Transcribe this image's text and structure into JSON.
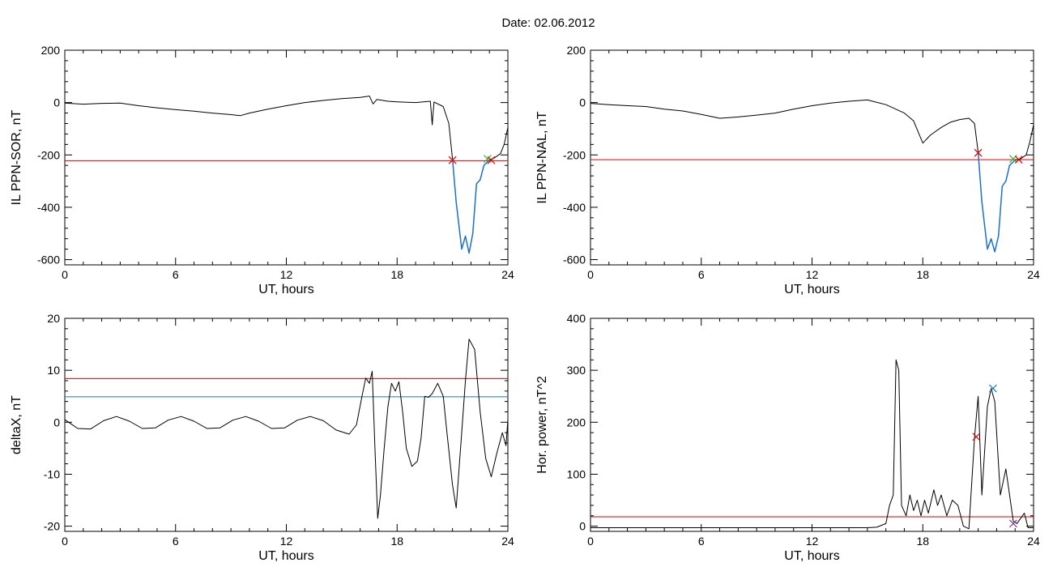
{
  "header": {
    "date_title": "Date:  02.06.2012"
  },
  "colors": {
    "data": "#000000",
    "red": "#e00000",
    "blue": "#1a6fd6",
    "green": "#22b022",
    "purple": "#7030a0"
  },
  "chart_data": [
    {
      "id": "p1",
      "type": "line",
      "xlabel": "UT, hours",
      "ylabel": "IL PPN-SOR, nT",
      "xlim": [
        0,
        24
      ],
      "ylim": [
        -620,
        200
      ],
      "xticks": [
        0,
        6,
        12,
        18,
        24
      ],
      "yticks": [
        200,
        0,
        -200,
        -400,
        -600
      ],
      "threshold_lines": [
        {
          "y": -222,
          "color": "red"
        }
      ],
      "series": [
        {
          "color": "data",
          "points": [
            [
              0,
              -2
            ],
            [
              1,
              -6
            ],
            [
              2,
              -3
            ],
            [
              3,
              -2
            ],
            [
              4,
              -12
            ],
            [
              5,
              -20
            ],
            [
              6,
              -27
            ],
            [
              7,
              -33
            ],
            [
              8,
              -40
            ],
            [
              9,
              -46
            ],
            [
              9.5,
              -50
            ],
            [
              10,
              -40
            ],
            [
              11,
              -25
            ],
            [
              12,
              -12
            ],
            [
              13,
              0
            ],
            [
              14,
              8
            ],
            [
              15,
              15
            ],
            [
              16,
              20
            ],
            [
              16.5,
              25
            ],
            [
              16.7,
              -5
            ],
            [
              16.9,
              12
            ],
            [
              17.5,
              5
            ],
            [
              18,
              3
            ],
            [
              19,
              0
            ],
            [
              19.8,
              5
            ],
            [
              19.9,
              -85
            ],
            [
              20,
              2
            ],
            [
              20.5,
              -15
            ],
            [
              20.8,
              -80
            ],
            [
              21,
              -215
            ]
          ]
        },
        {
          "color": "blue",
          "points": [
            [
              21,
              -215
            ],
            [
              21.2,
              -380
            ],
            [
              21.5,
              -560
            ],
            [
              21.7,
              -510
            ],
            [
              21.9,
              -575
            ],
            [
              22.1,
              -500
            ],
            [
              22.3,
              -310
            ],
            [
              22.5,
              -295
            ],
            [
              22.7,
              -240
            ],
            [
              23,
              -220
            ]
          ]
        },
        {
          "color": "data",
          "points": [
            [
              23,
              -220
            ],
            [
              23.3,
              -210
            ],
            [
              23.6,
              -195
            ],
            [
              23.8,
              -160
            ],
            [
              24,
              -95
            ]
          ]
        }
      ],
      "markers": [
        {
          "x": 21.0,
          "y": -220,
          "color": "red"
        },
        {
          "x": 22.9,
          "y": -215,
          "color": "green"
        },
        {
          "x": 23.1,
          "y": -220,
          "color": "red"
        }
      ]
    },
    {
      "id": "p2",
      "type": "line",
      "xlabel": "UT, hours",
      "ylabel": "IL PPN-NAL, nT",
      "xlim": [
        0,
        24
      ],
      "ylim": [
        -620,
        200
      ],
      "xticks": [
        0,
        6,
        12,
        18,
        24
      ],
      "yticks": [
        200,
        0,
        -200,
        -400,
        -600
      ],
      "threshold_lines": [
        {
          "y": -218,
          "color": "red"
        }
      ],
      "series": [
        {
          "color": "data",
          "points": [
            [
              0,
              -3
            ],
            [
              1,
              -8
            ],
            [
              2,
              -12
            ],
            [
              3,
              -15
            ],
            [
              4,
              -25
            ],
            [
              5,
              -32
            ],
            [
              6,
              -45
            ],
            [
              7,
              -60
            ],
            [
              8,
              -55
            ],
            [
              9,
              -48
            ],
            [
              10,
              -40
            ],
            [
              11,
              -25
            ],
            [
              12,
              -12
            ],
            [
              13,
              -2
            ],
            [
              14,
              5
            ],
            [
              15,
              10
            ],
            [
              16,
              -8
            ],
            [
              17,
              -40
            ],
            [
              17.5,
              -70
            ],
            [
              18,
              -155
            ],
            [
              18.4,
              -125
            ],
            [
              19,
              -95
            ],
            [
              19.5,
              -75
            ],
            [
              20,
              -65
            ],
            [
              20.5,
              -60
            ],
            [
              20.8,
              -80
            ],
            [
              21,
              -190
            ]
          ]
        },
        {
          "color": "blue",
          "points": [
            [
              21,
              -190
            ],
            [
              21.2,
              -380
            ],
            [
              21.5,
              -560
            ],
            [
              21.7,
              -520
            ],
            [
              21.9,
              -570
            ],
            [
              22.1,
              -510
            ],
            [
              22.3,
              -320
            ],
            [
              22.5,
              -300
            ],
            [
              22.7,
              -240
            ],
            [
              23,
              -220
            ]
          ]
        },
        {
          "color": "data",
          "points": [
            [
              23,
              -220
            ],
            [
              23.3,
              -215
            ],
            [
              23.6,
              -200
            ],
            [
              23.8,
              -150
            ],
            [
              24,
              -85
            ]
          ]
        }
      ],
      "markers": [
        {
          "x": 21.0,
          "y": -192,
          "color": "red"
        },
        {
          "x": 22.9,
          "y": -215,
          "color": "green"
        },
        {
          "x": 23.2,
          "y": -218,
          "color": "red"
        }
      ]
    },
    {
      "id": "p3",
      "type": "line",
      "xlabel": "UT, hours",
      "ylabel": "deltaX, nT",
      "xlim": [
        0,
        24
      ],
      "ylim": [
        -21,
        20
      ],
      "xticks": [
        0,
        6,
        12,
        18,
        24
      ],
      "yticks": [
        20,
        10,
        0,
        -10,
        -20
      ],
      "threshold_lines": [
        {
          "y": 8.4,
          "color": "red"
        },
        {
          "y": 4.9,
          "color": "blue"
        }
      ],
      "series": [
        {
          "color": "data",
          "points": [
            [
              0,
              0.5
            ],
            [
              0.7,
              -1.2
            ],
            [
              1.4,
              -1.3
            ],
            [
              2.1,
              0.3
            ],
            [
              2.8,
              1.1
            ],
            [
              3.5,
              0.2
            ],
            [
              4.2,
              -1.2
            ],
            [
              4.9,
              -1.1
            ],
            [
              5.6,
              0.4
            ],
            [
              6.3,
              1.1
            ],
            [
              7,
              0.2
            ],
            [
              7.7,
              -1.2
            ],
            [
              8.4,
              -1.1
            ],
            [
              9.1,
              0.4
            ],
            [
              9.8,
              1.1
            ],
            [
              10.5,
              0.2
            ],
            [
              11.2,
              -1.2
            ],
            [
              11.9,
              -1.1
            ],
            [
              12.6,
              0.4
            ],
            [
              13.3,
              1.1
            ],
            [
              14,
              0.3
            ],
            [
              14.7,
              -1.5
            ],
            [
              15.4,
              -2.3
            ],
            [
              15.8,
              -0.5
            ],
            [
              16.1,
              5
            ],
            [
              16.3,
              8.5
            ],
            [
              16.5,
              7.5
            ],
            [
              16.65,
              9.8
            ],
            [
              16.8,
              -5
            ],
            [
              16.95,
              -18.5
            ],
            [
              17.1,
              -14
            ],
            [
              17.3,
              -5
            ],
            [
              17.5,
              3
            ],
            [
              17.7,
              7.5
            ],
            [
              17.9,
              6
            ],
            [
              18.1,
              7.8
            ],
            [
              18.3,
              2
            ],
            [
              18.5,
              -5
            ],
            [
              18.8,
              -8.5
            ],
            [
              19.1,
              -7.5
            ],
            [
              19.3,
              -3
            ],
            [
              19.5,
              5
            ],
            [
              19.7,
              4.8
            ],
            [
              19.9,
              5.5
            ],
            [
              20.2,
              7.5
            ],
            [
              20.5,
              5
            ],
            [
              20.7,
              -2
            ],
            [
              21,
              -12
            ],
            [
              21.2,
              -16.5
            ],
            [
              21.5,
              -2
            ],
            [
              21.7,
              8
            ],
            [
              21.9,
              16
            ],
            [
              22.2,
              14
            ],
            [
              22.5,
              2
            ],
            [
              22.8,
              -7
            ],
            [
              23.1,
              -10.5
            ],
            [
              23.4,
              -6
            ],
            [
              23.7,
              -2
            ],
            [
              23.9,
              -4.5
            ],
            [
              24,
              0.5
            ]
          ]
        }
      ],
      "markers": []
    },
    {
      "id": "p4",
      "type": "line",
      "xlabel": "UT, hours",
      "ylabel": "Hor. power, nT^2",
      "xlim": [
        0,
        24
      ],
      "ylim": [
        -10,
        400
      ],
      "xticks": [
        0,
        6,
        12,
        18,
        24
      ],
      "yticks": [
        400,
        300,
        200,
        100,
        0
      ],
      "threshold_lines": [
        {
          "y": 18,
          "color": "red"
        }
      ],
      "series": [
        {
          "color": "data",
          "points": [
            [
              0,
              -3
            ],
            [
              2,
              -3
            ],
            [
              4,
              -3
            ],
            [
              6,
              -3
            ],
            [
              8,
              -3
            ],
            [
              10,
              -3
            ],
            [
              12,
              -3
            ],
            [
              14,
              -3
            ],
            [
              15,
              -3
            ],
            [
              15.5,
              -2
            ],
            [
              16,
              5
            ],
            [
              16.2,
              40
            ],
            [
              16.4,
              60
            ],
            [
              16.55,
              320
            ],
            [
              16.7,
              300
            ],
            [
              16.85,
              40
            ],
            [
              17.1,
              20
            ],
            [
              17.3,
              60
            ],
            [
              17.5,
              30
            ],
            [
              17.7,
              50
            ],
            [
              17.9,
              20
            ],
            [
              18.1,
              50
            ],
            [
              18.3,
              25
            ],
            [
              18.6,
              70
            ],
            [
              18.8,
              40
            ],
            [
              19,
              60
            ],
            [
              19.3,
              20
            ],
            [
              19.6,
              50
            ],
            [
              19.9,
              40
            ],
            [
              20.2,
              0
            ],
            [
              20.5,
              -5
            ],
            [
              20.8,
              170
            ],
            [
              21,
              250
            ],
            [
              21.2,
              60
            ],
            [
              21.5,
              230
            ],
            [
              21.7,
              265
            ],
            [
              21.9,
              240
            ],
            [
              22.2,
              60
            ],
            [
              22.5,
              110
            ],
            [
              22.7,
              60
            ],
            [
              22.9,
              10
            ],
            [
              23.1,
              5
            ],
            [
              23.5,
              25
            ],
            [
              23.7,
              -3
            ],
            [
              24,
              -3
            ]
          ]
        }
      ],
      "markers": [
        {
          "x": 20.9,
          "y": 172,
          "color": "red"
        },
        {
          "x": 21.8,
          "y": 265,
          "color": "blue"
        },
        {
          "x": 22.9,
          "y": 5,
          "color": "purple"
        }
      ]
    }
  ]
}
